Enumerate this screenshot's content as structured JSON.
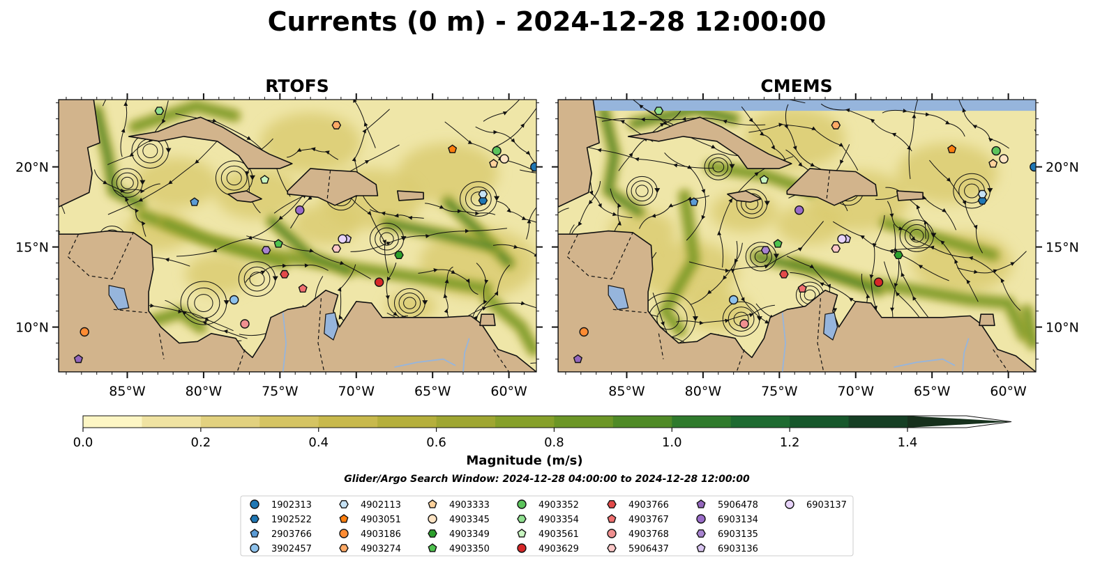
{
  "title": "Currents (0 m) - 2024-12-28 12:00:00",
  "panels": [
    {
      "name": "RTOFS"
    },
    {
      "name": "CMEMS"
    }
  ],
  "colorbar": {
    "label": "Magnitude (m/s)",
    "ticks": [
      "0.0",
      "0.2",
      "0.4",
      "0.6",
      "0.8",
      "1.0",
      "1.2",
      "1.4"
    ],
    "levels": [
      0.0,
      0.1,
      0.2,
      0.3,
      0.4,
      0.5,
      0.6,
      0.7,
      0.8,
      0.9,
      1.0,
      1.1,
      1.2,
      1.3,
      1.4,
      1.5
    ],
    "colors": [
      "#fdf6c4",
      "#f0e3a2",
      "#e2d17f",
      "#d5c463",
      "#c8b94c",
      "#b5af3c",
      "#9fa632",
      "#86a02a",
      "#6c9626",
      "#4f8a26",
      "#2f7a2c",
      "#1d6a30",
      "#16572b",
      "#153f24",
      "#16301c"
    ],
    "extend": "max"
  },
  "search_window": "Glider/Argo Search Window: 2024-12-28 04:00:00 to 2024-12-28 12:00:00",
  "colors": {
    "land": "#d2b48c",
    "water": "#96b5dc",
    "ocean_bg": "#efe6a8"
  },
  "chart_data": {
    "type": "map",
    "x_ticks": [
      "85°W",
      "80°W",
      "75°W",
      "70°W",
      "65°W",
      "60°W"
    ],
    "x_tick_values": [
      -85,
      -80,
      -75,
      -70,
      -65,
      -60
    ],
    "y_ticks": [
      "20°N",
      "15°N",
      "10°N"
    ],
    "y_tick_values": [
      20,
      15,
      10
    ],
    "xlim": [
      -89.5,
      -58.2
    ],
    "ylim": [
      7.2,
      24.2
    ],
    "floats": [
      {
        "id": "1902313",
        "marker": "circle",
        "color": "#1f77b4",
        "lon": -58.3,
        "lat": 20.0
      },
      {
        "id": "1902522",
        "marker": "hexagon",
        "color": "#1f77b4",
        "lon": -61.7,
        "lat": 17.9
      },
      {
        "id": "2903766",
        "marker": "pentagon",
        "color": "#5b9bd5",
        "lon": -80.6,
        "lat": 17.8
      },
      {
        "id": "3902457",
        "marker": "circle",
        "color": "#8ec2ec",
        "lon": -78.0,
        "lat": 11.7
      },
      {
        "id": "4902113",
        "marker": "hexagon",
        "color": "#c6e2f5",
        "lon": -61.7,
        "lat": 18.3
      },
      {
        "id": "4903051",
        "marker": "pentagon",
        "color": "#ff7f0e",
        "lon": -63.7,
        "lat": 21.1
      },
      {
        "id": "4903186",
        "marker": "circle",
        "color": "#ff8c33",
        "lon": -87.8,
        "lat": 9.7
      },
      {
        "id": "4903274",
        "marker": "hexagon",
        "color": "#ffaa66",
        "lon": -71.3,
        "lat": 22.6
      },
      {
        "id": "4903333",
        "marker": "pentagon",
        "color": "#ffd29c",
        "lon": -61.0,
        "lat": 20.2
      },
      {
        "id": "4903345",
        "marker": "circle",
        "color": "#ffe4c4",
        "lon": -60.3,
        "lat": 20.5
      },
      {
        "id": "4903349",
        "marker": "hexagon",
        "color": "#2ca02c",
        "lon": -67.2,
        "lat": 14.5
      },
      {
        "id": "4903350",
        "marker": "pentagon",
        "color": "#4ec24e",
        "lon": -75.1,
        "lat": 15.2
      },
      {
        "id": "4903352",
        "marker": "circle",
        "color": "#5cc45c",
        "lon": -60.8,
        "lat": 21.0
      },
      {
        "id": "4903354",
        "marker": "hexagon",
        "color": "#90e090",
        "lon": -82.9,
        "lat": 23.5
      },
      {
        "id": "4903561",
        "marker": "pentagon",
        "color": "#c8f5c0",
        "lon": -76.0,
        "lat": 19.2
      },
      {
        "id": "4903629",
        "marker": "circle",
        "color": "#d62728",
        "lon": -68.5,
        "lat": 12.8
      },
      {
        "id": "4903766",
        "marker": "hexagon",
        "color": "#e34a4a",
        "lon": -74.7,
        "lat": 13.3
      },
      {
        "id": "4903767",
        "marker": "pentagon",
        "color": "#f07070",
        "lon": -73.5,
        "lat": 12.4
      },
      {
        "id": "4903768",
        "marker": "circle",
        "color": "#f09090",
        "lon": -77.3,
        "lat": 10.2
      },
      {
        "id": "5906437",
        "marker": "hexagon",
        "color": "#fcc8c8",
        "lon": -71.3,
        "lat": 14.9
      },
      {
        "id": "5906478",
        "marker": "pentagon",
        "color": "#9467bd",
        "lon": -88.2,
        "lat": 8.0
      },
      {
        "id": "6903134",
        "marker": "circle",
        "color": "#9a6cc8",
        "lon": -73.7,
        "lat": 17.3
      },
      {
        "id": "6903135",
        "marker": "hexagon",
        "color": "#a884d0",
        "lon": -75.9,
        "lat": 14.8
      },
      {
        "id": "6903136",
        "marker": "pentagon",
        "color": "#d8c4f0",
        "lon": -70.6,
        "lat": 15.5
      },
      {
        "id": "6903137",
        "marker": "circle",
        "color": "#e8d4fa",
        "lon": -70.9,
        "lat": 15.5
      }
    ]
  }
}
